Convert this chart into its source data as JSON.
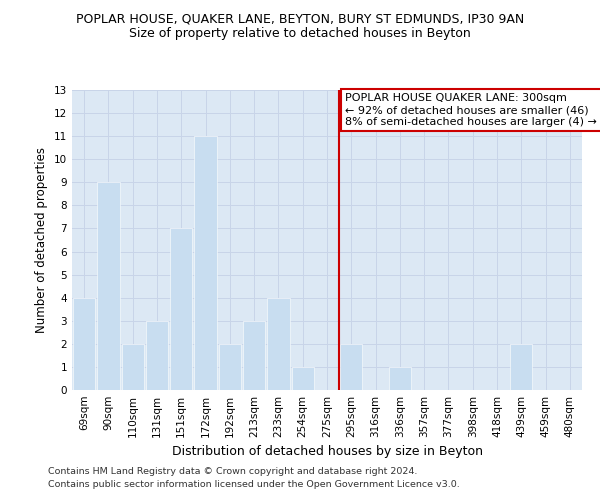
{
  "title": "POPLAR HOUSE, QUAKER LANE, BEYTON, BURY ST EDMUNDS, IP30 9AN",
  "subtitle": "Size of property relative to detached houses in Beyton",
  "xlabel": "Distribution of detached houses by size in Beyton",
  "ylabel": "Number of detached properties",
  "categories": [
    "69sqm",
    "90sqm",
    "110sqm",
    "131sqm",
    "151sqm",
    "172sqm",
    "192sqm",
    "213sqm",
    "233sqm",
    "254sqm",
    "275sqm",
    "295sqm",
    "316sqm",
    "336sqm",
    "357sqm",
    "377sqm",
    "398sqm",
    "418sqm",
    "439sqm",
    "459sqm",
    "480sqm"
  ],
  "values": [
    4,
    9,
    2,
    3,
    7,
    11,
    2,
    3,
    4,
    1,
    0,
    2,
    0,
    1,
    0,
    0,
    0,
    0,
    2,
    0,
    0
  ],
  "bar_color": "#c8ddf0",
  "vline_color": "#cc0000",
  "vline_x_index": 11,
  "annotation_line1": "POPLAR HOUSE QUAKER LANE: 300sqm",
  "annotation_line2": "← 92% of detached houses are smaller (46)",
  "annotation_line3": "8% of semi-detached houses are larger (4) →",
  "ylim": [
    0,
    13
  ],
  "yticks": [
    0,
    1,
    2,
    3,
    4,
    5,
    6,
    7,
    8,
    9,
    10,
    11,
    12,
    13
  ],
  "grid_color": "#c8d4e8",
  "bg_color": "#dce8f4",
  "footer1": "Contains HM Land Registry data © Crown copyright and database right 2024.",
  "footer2": "Contains public sector information licensed under the Open Government Licence v3.0.",
  "title_fontsize": 9,
  "subtitle_fontsize": 9,
  "ylabel_fontsize": 8.5,
  "xlabel_fontsize": 9,
  "tick_fontsize": 7.5,
  "footer_fontsize": 6.8,
  "annot_fontsize": 8
}
